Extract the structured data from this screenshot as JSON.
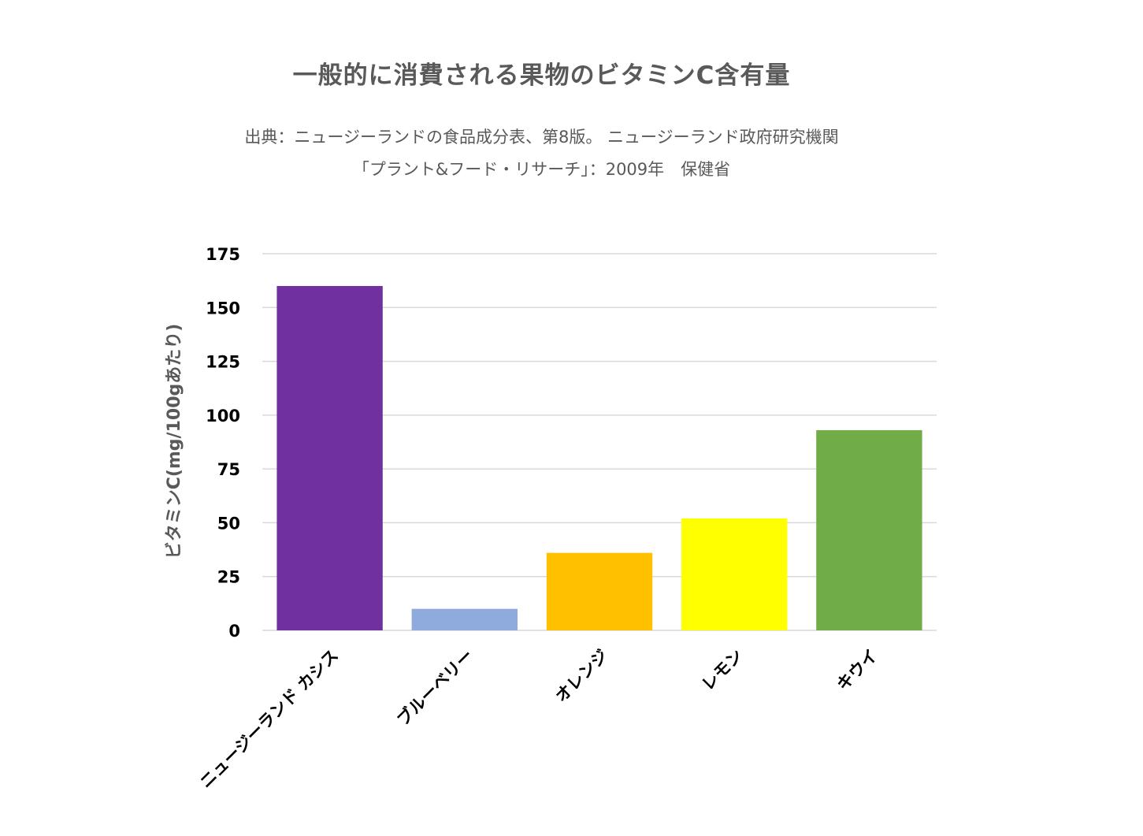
{
  "chart_data": {
    "type": "bar",
    "title": "一般的に消費される果物のビタミンC含有量",
    "subtitle_lines": [
      "出典：ニュージーランドの食品成分表、第8版。 ニュージーランド政府研究機関",
      "「プラント&フード・リサーチ」：2009年　保健省"
    ],
    "ylabel": "ビタミンC(mg/100gあたり)",
    "xlabel": "",
    "categories": [
      "ニュージーランド カシス",
      "ブルーベリー",
      "オレンジ",
      "レモン",
      "キウイ"
    ],
    "values": [
      160,
      10,
      36,
      52,
      93
    ],
    "colors": [
      "#7030A0",
      "#8FAADC",
      "#FFC000",
      "#FFFF00",
      "#70AD47"
    ],
    "ylim": [
      0,
      175
    ],
    "yticks": [
      0,
      25,
      50,
      75,
      100,
      125,
      150,
      175
    ],
    "grid": true,
    "legend": "none"
  }
}
